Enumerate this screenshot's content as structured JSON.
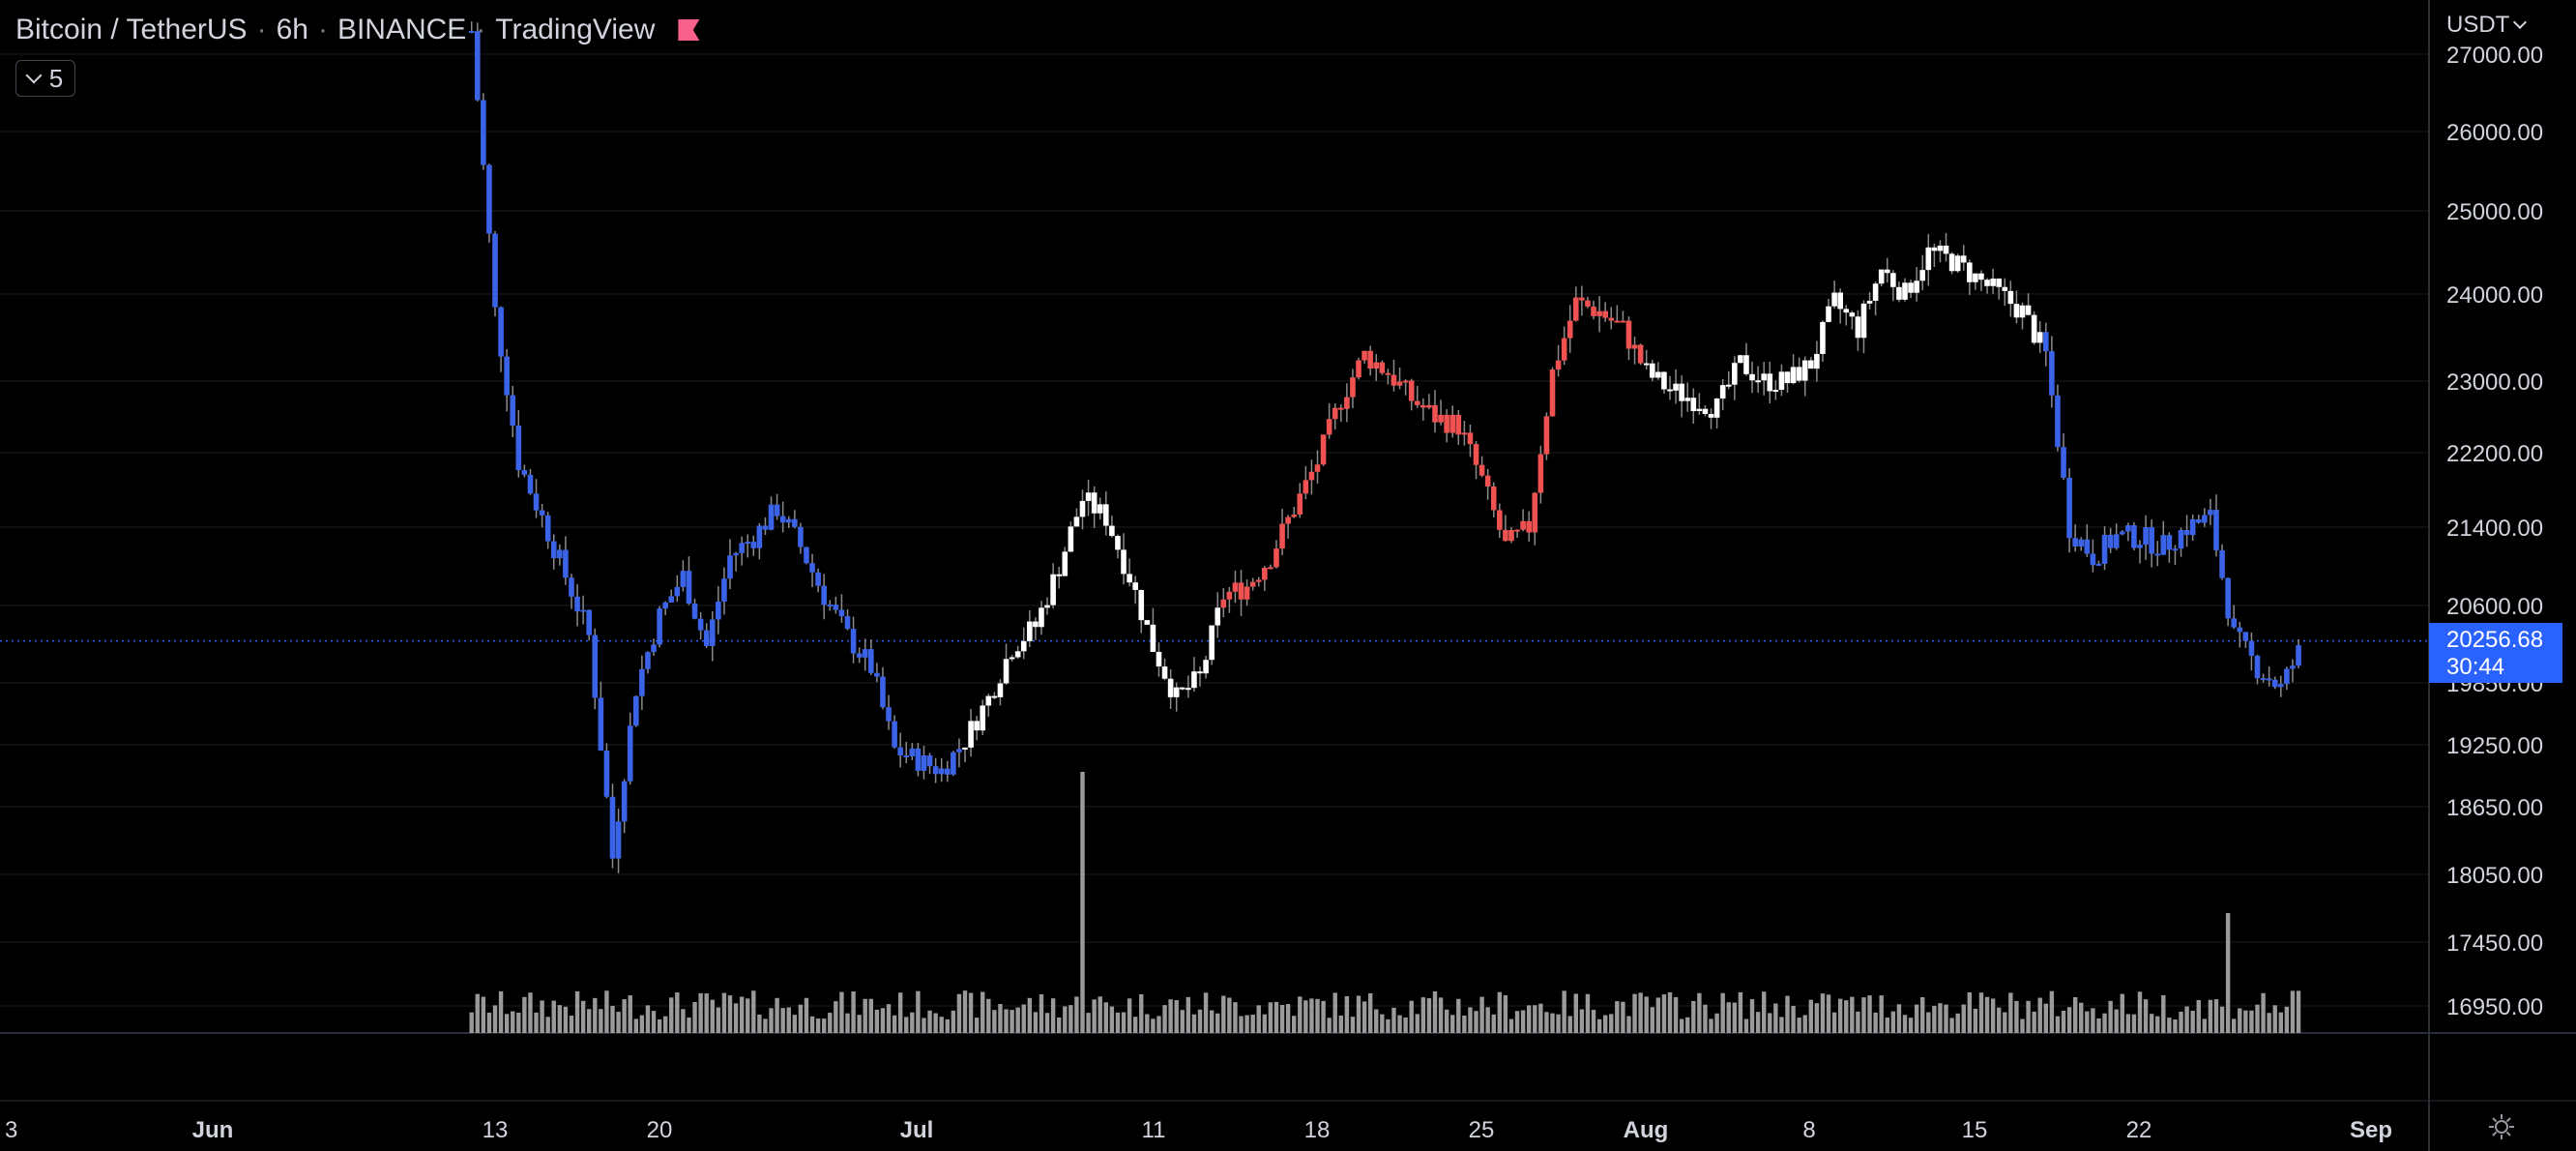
{
  "header": {
    "symbol": "Bitcoin / TetherUS",
    "interval": "6h",
    "exchange": "BINANCE",
    "source": "TradingView",
    "indicator_count": "5"
  },
  "price_axis": {
    "currency": "USDT",
    "last_price": "20256.68",
    "countdown": "30:44"
  },
  "colors": {
    "background": "#000000",
    "bull_blue": "#3b63e8",
    "red_phase": "#f05252",
    "white_phase": "#ffffff",
    "volume": "#9a9a9a",
    "grid": "#1c1c1c",
    "axis_text": "#d1d4dc",
    "accent": "#2962ff"
  },
  "chart_data": {
    "type": "candlestick",
    "title": "Bitcoin / TetherUS · 6h · BINANCE",
    "ylabel": "",
    "xlabel": "",
    "grid": true,
    "y_ticks": [
      "27000.00",
      "26000.00",
      "25000.00",
      "24000.00",
      "23000.00",
      "22200.00",
      "21400.00",
      "20600.00",
      "19850.00",
      "19250.00",
      "18650.00",
      "18050.00",
      "17450.00",
      "16950.00"
    ],
    "x_ticks": [
      "3",
      "Jun",
      "13",
      "20",
      "Jul",
      "11",
      "18",
      "25",
      "Aug",
      "8",
      "15",
      "22",
      "Sep"
    ],
    "last_price": 20256.68,
    "close_series": [
      {
        "name": "blue",
        "points": [
          [
            "Jun 12",
            27300
          ],
          [
            "Jun 13",
            23800
          ],
          [
            "Jun 14",
            22100
          ],
          [
            "Jun 15",
            21500
          ],
          [
            "Jun 16",
            20900
          ],
          [
            "Jun 17",
            20300
          ],
          [
            "Jun 18",
            18200
          ],
          [
            "Jun 19",
            19800
          ],
          [
            "Jun 20",
            20500
          ],
          [
            "Jun 21",
            20900
          ],
          [
            "Jun 22",
            20200
          ],
          [
            "Jun 23",
            21100
          ],
          [
            "Jun 24",
            21300
          ],
          [
            "Jun 25",
            21600
          ],
          [
            "Jun 26",
            21200
          ],
          [
            "Jun 27",
            20700
          ],
          [
            "Jun 28",
            20300
          ],
          [
            "Jun 29",
            20000
          ],
          [
            "Jun 30",
            19200
          ],
          [
            "Jul 1",
            19100
          ],
          [
            "Jul 2",
            19000
          ]
        ]
      },
      {
        "name": "white",
        "points": [
          [
            "Jul 3",
            19300
          ],
          [
            "Jul 4",
            19700
          ],
          [
            "Jul 5",
            20200
          ],
          [
            "Jul 6",
            20400
          ],
          [
            "Jul 7",
            21000
          ],
          [
            "Jul 8",
            21700
          ],
          [
            "Jul 9",
            21500
          ],
          [
            "Jul 10",
            20900
          ],
          [
            "Jul 11",
            20200
          ],
          [
            "Jul 12",
            19700
          ],
          [
            "Jul 13",
            19900
          ]
        ]
      },
      {
        "name": "red",
        "points": [
          [
            "Jul 14",
            20700
          ],
          [
            "Jul 15",
            20800
          ],
          [
            "Jul 16",
            21100
          ],
          [
            "Jul 17",
            21600
          ],
          [
            "Jul 18",
            22100
          ],
          [
            "Jul 19",
            22800
          ],
          [
            "Jul 20",
            23300
          ],
          [
            "Jul 21",
            23100
          ],
          [
            "Jul 22",
            22800
          ],
          [
            "Jul 23",
            22600
          ],
          [
            "Jul 24",
            22500
          ],
          [
            "Jul 25",
            21900
          ],
          [
            "Jul 26",
            21200
          ],
          [
            "Jul 27",
            21400
          ],
          [
            "Jul 28",
            23100
          ],
          [
            "Jul 29",
            23900
          ],
          [
            "Jul 30",
            23800
          ],
          [
            "Jul 31",
            23600
          ]
        ]
      },
      {
        "name": "white",
        "points": [
          [
            "Aug 1",
            23100
          ],
          [
            "Aug 2",
            22900
          ],
          [
            "Aug 3",
            22800
          ],
          [
            "Aug 4",
            22700
          ],
          [
            "Aug 5",
            23200
          ],
          [
            "Aug 6",
            23000
          ],
          [
            "Aug 7",
            23000
          ],
          [
            "Aug 8",
            23200
          ],
          [
            "Aug 9",
            23900
          ],
          [
            "Aug 10",
            23600
          ],
          [
            "Aug 11",
            24300
          ],
          [
            "Aug 12",
            24000
          ],
          [
            "Aug 13",
            24500
          ],
          [
            "Aug 14",
            24400
          ],
          [
            "Aug 15",
            24200
          ],
          [
            "Aug 16",
            24000
          ],
          [
            "Aug 17",
            23800
          ]
        ]
      },
      {
        "name": "blue",
        "points": [
          [
            "Aug 18",
            23300
          ],
          [
            "Aug 19",
            21400
          ],
          [
            "Aug 20",
            21100
          ],
          [
            "Aug 21",
            21300
          ],
          [
            "Aug 22",
            21300
          ],
          [
            "Aug 23",
            21200
          ],
          [
            "Aug 24",
            21400
          ],
          [
            "Aug 25",
            21500
          ],
          [
            "Aug 26",
            20300
          ],
          [
            "Aug 27",
            20000
          ],
          [
            "Aug 28",
            19800
          ],
          [
            "Aug 29",
            20256.68
          ]
        ]
      }
    ],
    "volume_spikes": [
      [
        "Jul 8",
        "max"
      ],
      [
        "Aug 26",
        "high"
      ]
    ]
  }
}
